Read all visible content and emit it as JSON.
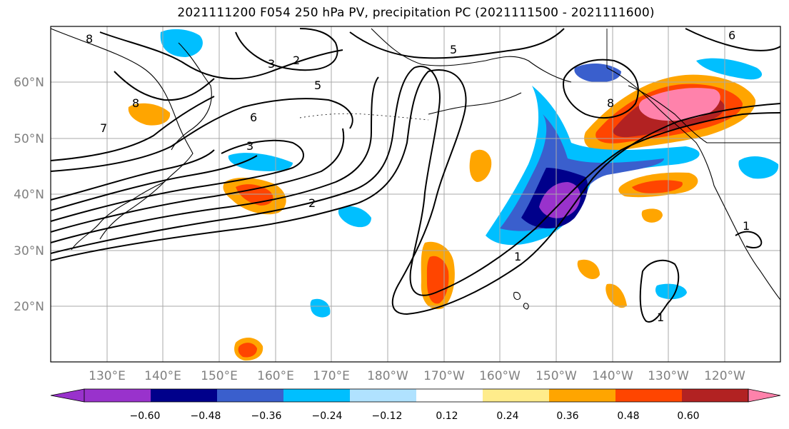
{
  "title": "2021111200 F054 250 hPa PV, precipitation PC (2021111500 - 2021111600)",
  "map": {
    "lat_labels": [
      "60°N",
      "50°N",
      "40°N",
      "30°N",
      "20°N"
    ],
    "lon_labels": [
      "130°E",
      "140°E",
      "150°E",
      "160°E",
      "170°E",
      "180°W",
      "170°W",
      "160°W",
      "150°W",
      "140°W",
      "130°W",
      "120°W"
    ],
    "extent": {
      "lon_min": 120,
      "lon_max": 250,
      "lat_min": 10,
      "lat_max": 70
    },
    "pv_contour_labels": [
      "8",
      "7",
      "6",
      "5",
      "3",
      "2",
      "1"
    ]
  },
  "colorbar": {
    "ticks": [
      "−0.60",
      "−0.48",
      "−0.36",
      "−0.24",
      "−0.12",
      "0.12",
      "0.24",
      "0.36",
      "0.48",
      "0.60"
    ],
    "colors": [
      "#9932cc",
      "#00008b",
      "#3a5fcd",
      "#00bfff",
      "#b0e2ff",
      "#ffffff",
      "#ffec8b",
      "#ffa500",
      "#ff4500",
      "#b22222",
      "#ff82ab",
      "#ffb6c1"
    ]
  }
}
